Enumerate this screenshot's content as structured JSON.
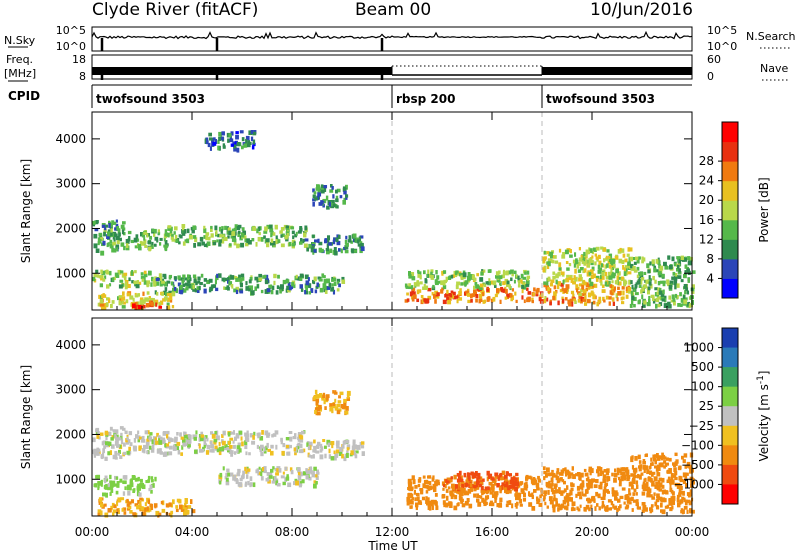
{
  "header": {
    "station": "Clyde River (fitACF)",
    "beam": "Beam 00",
    "date": "10/Jun/2016"
  },
  "strip_nsky": {
    "left_label": "N.Sky",
    "right_label": "N.Search",
    "ticks_left": [
      "10^5",
      "10^0"
    ],
    "ticks_right": [
      "10^5",
      "10^0"
    ]
  },
  "strip_freq": {
    "left_label_1": "Freq.",
    "left_label_2": "[MHz]",
    "ticks_left": [
      "18",
      "8"
    ],
    "right_label": "Nave",
    "ticks_right": [
      "60",
      "0"
    ]
  },
  "strip_cpid": {
    "label": "CPID",
    "modes": [
      {
        "name": "twofsound 3503",
        "start_hour": 0
      },
      {
        "name": "rbsp 200",
        "start_hour": 12
      },
      {
        "name": "twofsound 3503",
        "start_hour": 18
      }
    ]
  },
  "x_axis": {
    "label": "Time UT",
    "range": [
      0,
      24
    ],
    "ticks": [
      "00:00",
      "04:00",
      "08:00",
      "12:00",
      "16:00",
      "20:00",
      "00:00"
    ],
    "tick_hours": [
      0,
      4,
      8,
      12,
      16,
      20,
      24
    ],
    "mode_change_hours": [
      12,
      18
    ]
  },
  "panels": [
    {
      "parameter": "power",
      "ylabel": "Slant Range [km]",
      "yticks": [
        "1000",
        "2000",
        "3000",
        "4000"
      ],
      "ytick_values": [
        1000,
        2000,
        3000,
        4000
      ],
      "ylim": [
        180,
        4600
      ],
      "colorbar": {
        "label": "Power [dB]",
        "tick_labels": [
          "4",
          "8",
          "12",
          "16",
          "20",
          "24",
          "28"
        ],
        "colors": [
          "#0000ff",
          "#2b45b8",
          "#2f8a4f",
          "#55b84a",
          "#b9d84a",
          "#e8c020",
          "#f07a10",
          "#e83010",
          "#ff0000"
        ]
      }
    },
    {
      "parameter": "velocity",
      "ylabel": "Slant Range [km]",
      "yticks": [
        "1000",
        "2000",
        "3000",
        "4000"
      ],
      "ytick_values": [
        1000,
        2000,
        3000,
        4000
      ],
      "ylim": [
        180,
        4600
      ],
      "colorbar": {
        "label": "Velocity [m s",
        "label_sup": "-1",
        "label_end": "]",
        "tick_labels": [
          "1000",
          "500",
          "100",
          "25",
          "-25",
          "-100",
          "-500",
          "-1000"
        ],
        "colors": [
          "#1a3fb0",
          "#2a7ab8",
          "#3aa060",
          "#7ccf44",
          "#c0c0c0",
          "#f0c020",
          "#f08a10",
          "#f04a10",
          "#ff0000"
        ]
      }
    }
  ],
  "chart_data": {
    "type": "heatmap",
    "x_unit": "hours UT",
    "y_unit": "slant range km",
    "xlim": [
      0,
      24
    ],
    "ylim": [
      180,
      4600
    ],
    "nsky_dropouts_hours": [
      0.4,
      5.0,
      11.6
    ],
    "power_regions": [
      {
        "x0": 0.0,
        "x1": 1.3,
        "y0": 1500,
        "y1": 2200,
        "value": 12
      },
      {
        "x0": 1.3,
        "x1": 3.0,
        "y0": 1550,
        "y1": 2000,
        "value": 14
      },
      {
        "x0": 3.0,
        "x1": 8.5,
        "y0": 1650,
        "y1": 2100,
        "value": 14
      },
      {
        "x0": 8.5,
        "x1": 10.8,
        "y0": 1500,
        "y1": 1900,
        "value": 10
      },
      {
        "x0": 4.5,
        "x1": 6.5,
        "y0": 3800,
        "y1": 4200,
        "value": 8
      },
      {
        "x0": 8.8,
        "x1": 10.2,
        "y0": 2500,
        "y1": 3000,
        "value": 10
      },
      {
        "x0": 0.0,
        "x1": 2.5,
        "y0": 750,
        "y1": 1100,
        "value": 16
      },
      {
        "x0": 2.5,
        "x1": 10.0,
        "y0": 600,
        "y1": 1000,
        "value": 12
      },
      {
        "x0": 0.2,
        "x1": 3.2,
        "y0": 250,
        "y1": 600,
        "value": 20
      },
      {
        "x0": 1.5,
        "x1": 2.8,
        "y0": 250,
        "y1": 400,
        "value": 28
      },
      {
        "x0": 12.5,
        "x1": 18.0,
        "y0": 400,
        "y1": 700,
        "value": 26
      },
      {
        "x0": 12.5,
        "x1": 17.5,
        "y0": 700,
        "y1": 1100,
        "value": 16
      },
      {
        "x0": 18.0,
        "x1": 21.5,
        "y0": 350,
        "y1": 800,
        "value": 24
      },
      {
        "x0": 18.0,
        "x1": 21.5,
        "y0": 800,
        "y1": 1600,
        "value": 18
      },
      {
        "x0": 21.5,
        "x1": 24.0,
        "y0": 300,
        "y1": 1400,
        "value": 14
      }
    ],
    "velocity_regions": [
      {
        "x0": 0.0,
        "x1": 1.3,
        "y0": 1500,
        "y1": 2200,
        "value": 0
      },
      {
        "x0": 1.3,
        "x1": 8.5,
        "y0": 1600,
        "y1": 2100,
        "value": 0
      },
      {
        "x0": 8.5,
        "x1": 10.8,
        "y0": 1500,
        "y1": 1900,
        "value": 0
      },
      {
        "x0": 0.0,
        "x1": 2.5,
        "y0": 700,
        "y1": 1100,
        "value": 50
      },
      {
        "x0": 0.2,
        "x1": 4.0,
        "y0": 250,
        "y1": 600,
        "value": -100
      },
      {
        "x0": 5.0,
        "x1": 9.0,
        "y0": 900,
        "y1": 1300,
        "value": 0
      },
      {
        "x0": 8.8,
        "x1": 10.2,
        "y0": 2500,
        "y1": 3000,
        "value": -100
      },
      {
        "x0": 12.5,
        "x1": 18.0,
        "y0": 400,
        "y1": 1100,
        "value": -200
      },
      {
        "x0": 14.0,
        "x1": 17.0,
        "y0": 800,
        "y1": 1200,
        "value": -600
      },
      {
        "x0": 18.0,
        "x1": 21.5,
        "y0": 350,
        "y1": 1300,
        "value": -300
      },
      {
        "x0": 21.5,
        "x1": 24.0,
        "y0": 300,
        "y1": 1600,
        "value": -150
      }
    ]
  }
}
